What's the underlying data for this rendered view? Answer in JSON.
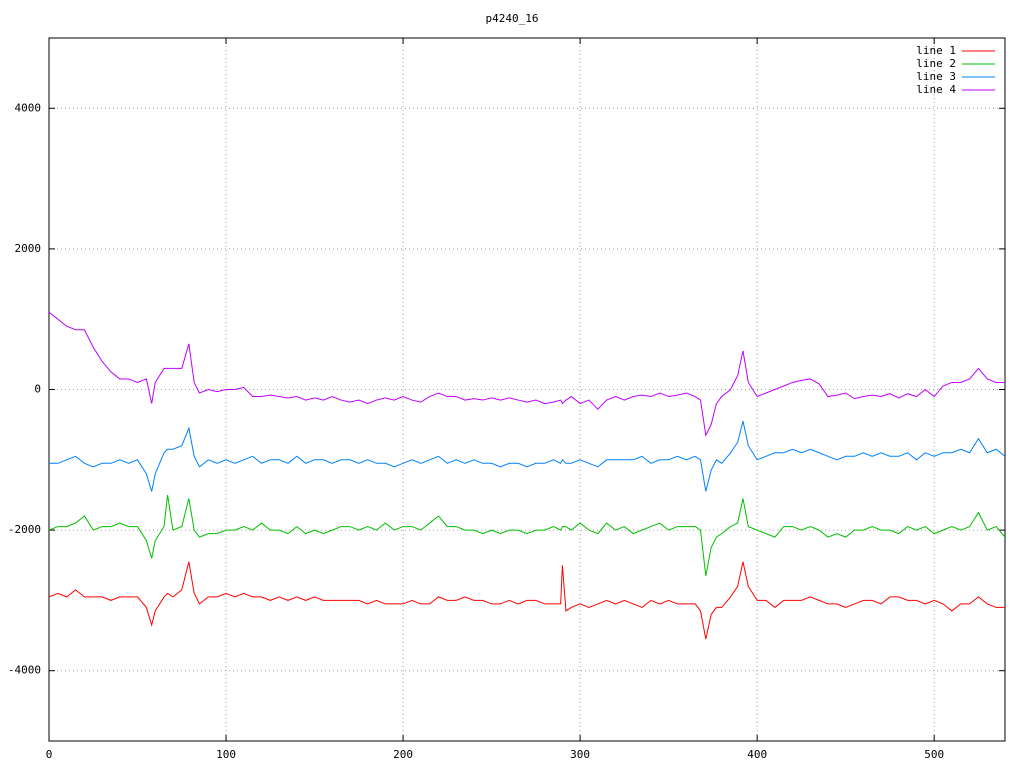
{
  "chart_data": {
    "type": "line",
    "title": "p4240_16",
    "x": [
      0,
      5,
      10,
      15,
      20,
      25,
      30,
      35,
      40,
      45,
      50,
      55,
      58,
      60,
      65,
      67,
      70,
      75,
      79,
      82,
      85,
      90,
      95,
      100,
      105,
      110,
      115,
      120,
      125,
      130,
      135,
      140,
      145,
      150,
      155,
      160,
      165,
      170,
      175,
      180,
      185,
      190,
      195,
      200,
      205,
      210,
      215,
      220,
      225,
      230,
      235,
      240,
      245,
      250,
      255,
      260,
      265,
      270,
      275,
      280,
      285,
      289,
      290,
      292,
      295,
      300,
      305,
      310,
      315,
      320,
      325,
      330,
      335,
      340,
      345,
      350,
      355,
      360,
      365,
      368,
      371,
      374,
      377,
      380,
      385,
      389,
      392,
      395,
      400,
      405,
      410,
      415,
      420,
      425,
      430,
      435,
      440,
      445,
      450,
      455,
      460,
      465,
      470,
      475,
      480,
      485,
      490,
      495,
      500,
      505,
      510,
      515,
      520,
      525,
      530,
      535,
      540
    ],
    "series": [
      {
        "name": "line 1",
        "color": "#ff0000",
        "values": [
          -2950,
          -2900,
          -2950,
          -2850,
          -2950,
          -2950,
          -2950,
          -3000,
          -2950,
          -2950,
          -2950,
          -3100,
          -3350,
          -3150,
          -2950,
          -2900,
          -2950,
          -2850,
          -2450,
          -2900,
          -3050,
          -2950,
          -2950,
          -2900,
          -2950,
          -2900,
          -2950,
          -2950,
          -3000,
          -2950,
          -3000,
          -2950,
          -3000,
          -2950,
          -3000,
          -3000,
          -3000,
          -3000,
          -3000,
          -3050,
          -3000,
          -3050,
          -3050,
          -3050,
          -3000,
          -3050,
          -3050,
          -2950,
          -3000,
          -3000,
          -2950,
          -3000,
          -3000,
          -3050,
          -3050,
          -3000,
          -3050,
          -3000,
          -3000,
          -3050,
          -3050,
          -3050,
          -2500,
          -3150,
          -3100,
          -3050,
          -3100,
          -3050,
          -3000,
          -3050,
          -3000,
          -3050,
          -3100,
          -3000,
          -3050,
          -3000,
          -3050,
          -3050,
          -3050,
          -3150,
          -3550,
          -3200,
          -3100,
          -3100,
          -2950,
          -2800,
          -2450,
          -2800,
          -3000,
          -3000,
          -3100,
          -3000,
          -3000,
          -3000,
          -2950,
          -3000,
          -3050,
          -3050,
          -3100,
          -3050,
          -3000,
          -3000,
          -3050,
          -2950,
          -2950,
          -3000,
          -3000,
          -3050,
          -3000,
          -3050,
          -3150,
          -3050,
          -3050,
          -2950,
          -3050,
          -3100,
          -3100
        ]
      },
      {
        "name": "line 2",
        "color": "#00c000",
        "values": [
          -2000,
          -1950,
          -1950,
          -1900,
          -1800,
          -2000,
          -1950,
          -1950,
          -1900,
          -1950,
          -1950,
          -2150,
          -2400,
          -2150,
          -1950,
          -1500,
          -2000,
          -1950,
          -1550,
          -2000,
          -2100,
          -2050,
          -2050,
          -2000,
          -2000,
          -1950,
          -2000,
          -1900,
          -2000,
          -2000,
          -2050,
          -1950,
          -2050,
          -2000,
          -2050,
          -2000,
          -1950,
          -1950,
          -2000,
          -1950,
          -2000,
          -1900,
          -2000,
          -1950,
          -1950,
          -2000,
          -1900,
          -1800,
          -1950,
          -1950,
          -2000,
          -2000,
          -2050,
          -2000,
          -2050,
          -2000,
          -2000,
          -2050,
          -2000,
          -2000,
          -1950,
          -2000,
          -1950,
          -1950,
          -2000,
          -1900,
          -2000,
          -2050,
          -1900,
          -2000,
          -1950,
          -2050,
          -2000,
          -1950,
          -1900,
          -2000,
          -1950,
          -1950,
          -1950,
          -2000,
          -2650,
          -2250,
          -2100,
          -2050,
          -1950,
          -1900,
          -1550,
          -1950,
          -2000,
          -2050,
          -2100,
          -1950,
          -1950,
          -2000,
          -1950,
          -2000,
          -2100,
          -2050,
          -2100,
          -2000,
          -2000,
          -1950,
          -2000,
          -2000,
          -2050,
          -1950,
          -2000,
          -1950,
          -2050,
          -2000,
          -1950,
          -2000,
          -1950,
          -1750,
          -2000,
          -1950,
          -2100
        ]
      },
      {
        "name": "line 3",
        "color": "#0080ff",
        "values": [
          -1050,
          -1050,
          -1000,
          -950,
          -1050,
          -1100,
          -1050,
          -1050,
          -1000,
          -1050,
          -1000,
          -1200,
          -1450,
          -1200,
          -900,
          -850,
          -850,
          -800,
          -550,
          -950,
          -1100,
          -1000,
          -1050,
          -1000,
          -1050,
          -1000,
          -950,
          -1050,
          -1000,
          -1000,
          -1050,
          -950,
          -1050,
          -1000,
          -1000,
          -1050,
          -1000,
          -1000,
          -1050,
          -1000,
          -1050,
          -1050,
          -1100,
          -1050,
          -1000,
          -1050,
          -1000,
          -950,
          -1050,
          -1000,
          -1050,
          -1000,
          -1050,
          -1050,
          -1100,
          -1050,
          -1050,
          -1100,
          -1050,
          -1050,
          -1000,
          -1050,
          -1000,
          -1050,
          -1050,
          -1000,
          -1050,
          -1100,
          -1000,
          -1000,
          -1000,
          -1000,
          -950,
          -1050,
          -1000,
          -1000,
          -950,
          -1000,
          -950,
          -1000,
          -1450,
          -1150,
          -1000,
          -1050,
          -900,
          -750,
          -450,
          -800,
          -1000,
          -950,
          -900,
          -900,
          -850,
          -900,
          -850,
          -900,
          -950,
          -1000,
          -950,
          -950,
          -900,
          -950,
          -900,
          -950,
          -950,
          -900,
          -1000,
          -900,
          -950,
          -900,
          -900,
          -850,
          -900,
          -700,
          -900,
          -850,
          -950
        ]
      },
      {
        "name": "line 4",
        "color": "#c000ff",
        "values": [
          1100,
          1000,
          900,
          850,
          850,
          600,
          400,
          250,
          150,
          150,
          100,
          150,
          -200,
          100,
          300,
          300,
          300,
          300,
          650,
          100,
          -50,
          0,
          -30,
          0,
          0,
          30,
          -100,
          -100,
          -80,
          -100,
          -120,
          -100,
          -150,
          -120,
          -150,
          -100,
          -150,
          -180,
          -150,
          -200,
          -150,
          -120,
          -150,
          -100,
          -150,
          -180,
          -100,
          -50,
          -100,
          -100,
          -150,
          -130,
          -150,
          -120,
          -150,
          -120,
          -150,
          -180,
          -150,
          -200,
          -180,
          -150,
          -200,
          -150,
          -100,
          -200,
          -150,
          -280,
          -150,
          -100,
          -150,
          -100,
          -80,
          -100,
          -50,
          -100,
          -80,
          -50,
          -100,
          -150,
          -650,
          -500,
          -200,
          -100,
          0,
          200,
          550,
          100,
          -100,
          -50,
          0,
          50,
          100,
          130,
          150,
          80,
          -100,
          -80,
          -50,
          -130,
          -100,
          -80,
          -100,
          -60,
          -120,
          -60,
          -100,
          0,
          -100,
          50,
          100,
          100,
          150,
          300,
          150,
          100,
          100
        ]
      }
    ],
    "xlim": [
      0,
      540
    ],
    "xticks": [
      0,
      100,
      200,
      300,
      400,
      500
    ],
    "ylim": [
      -5000,
      5000
    ],
    "yticks": [
      -4000,
      -2000,
      0,
      2000,
      4000
    ],
    "grid": true,
    "legend": "top-right"
  }
}
